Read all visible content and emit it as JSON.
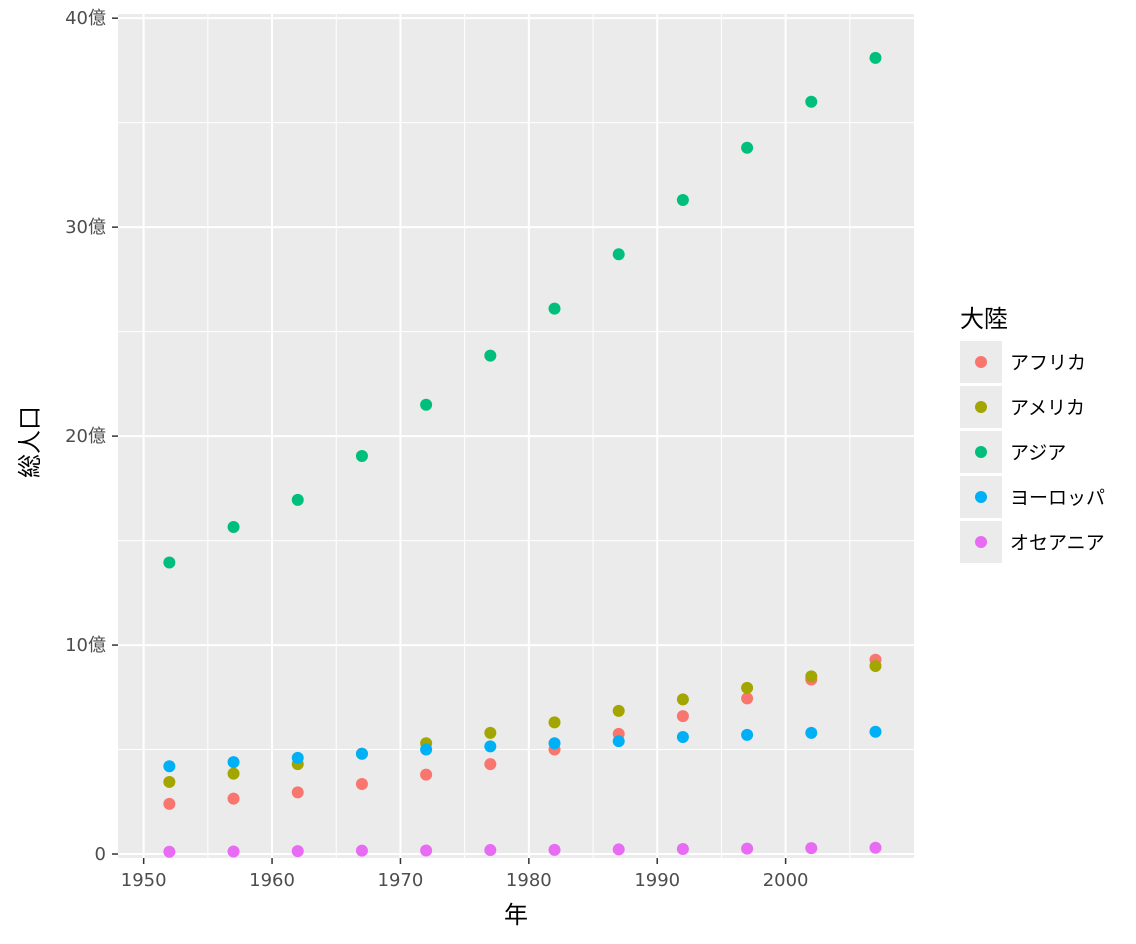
{
  "chart_data": {
    "type": "scatter",
    "xlabel": "年",
    "ylabel": "総人口",
    "xlim": [
      1948,
      2010
    ],
    "ylim": [
      -0.19,
      40.2
    ],
    "x_ticks": [
      1950,
      1960,
      1970,
      1980,
      1990,
      2000
    ],
    "x_tick_labels": [
      "1950",
      "1960",
      "1970",
      "1980",
      "1990",
      "2000"
    ],
    "y_ticks": [
      0,
      10,
      20,
      30,
      40
    ],
    "y_tick_labels": [
      "0",
      "10億",
      "20億",
      "30億",
      "40億"
    ],
    "y_unit": "億",
    "background": "#ebebeb",
    "grid": true,
    "legend": {
      "title": "大陸",
      "placement": "right"
    },
    "x": [
      1952,
      1957,
      1962,
      1967,
      1972,
      1977,
      1982,
      1987,
      1992,
      1997,
      2002,
      2007
    ],
    "series": [
      {
        "name": "アフリカ",
        "color": "#F8766D",
        "values": [
          2.4,
          2.65,
          2.95,
          3.35,
          3.8,
          4.3,
          5.0,
          5.75,
          6.6,
          7.45,
          8.35,
          9.3
        ]
      },
      {
        "name": "アメリカ",
        "color": "#A3A500",
        "values": [
          3.45,
          3.85,
          4.3,
          4.8,
          5.3,
          5.8,
          6.3,
          6.85,
          7.4,
          7.95,
          8.5,
          9.0
        ]
      },
      {
        "name": "アジア",
        "color": "#00BF7D",
        "values": [
          13.95,
          15.65,
          16.95,
          19.05,
          21.5,
          23.85,
          26.1,
          28.7,
          31.3,
          33.8,
          36.0,
          38.1
        ]
      },
      {
        "name": "ヨーロッパ",
        "color": "#00B0F6",
        "values": [
          4.2,
          4.4,
          4.6,
          4.8,
          5.0,
          5.15,
          5.3,
          5.4,
          5.6,
          5.7,
          5.8,
          5.85
        ]
      },
      {
        "name": "オセアニア",
        "color": "#E76BF3",
        "values": [
          0.11,
          0.12,
          0.14,
          0.16,
          0.17,
          0.19,
          0.2,
          0.22,
          0.24,
          0.26,
          0.28,
          0.3
        ]
      }
    ]
  }
}
